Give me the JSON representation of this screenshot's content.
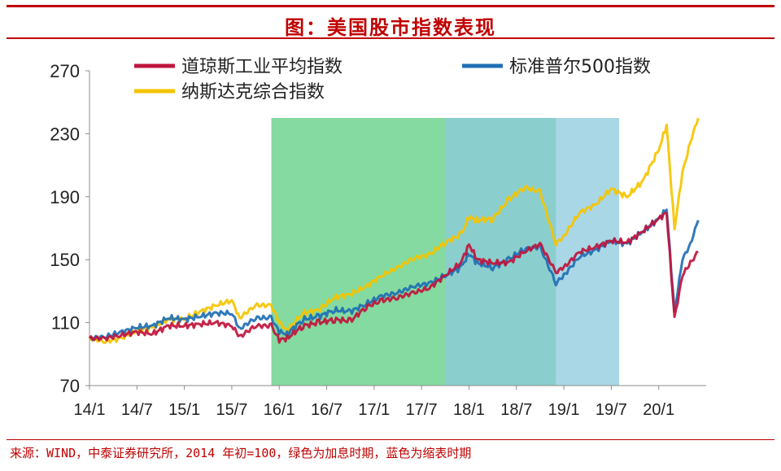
{
  "title": "图：美国股市指数表现",
  "source": "来源：WIND，中泰证券研究所，2014 年初=100，绿色为加息时期，蓝色为缩表时期",
  "chart_data": {
    "type": "line",
    "title": "图：美国股市指数表现",
    "xlabel": "",
    "ylabel": "",
    "ylim": [
      70,
      270
    ],
    "yticks": [
      70,
      110,
      150,
      190,
      230,
      270
    ],
    "xticks": [
      "14/1",
      "14/7",
      "15/1",
      "15/7",
      "16/1",
      "16/7",
      "17/1",
      "17/7",
      "18/1",
      "18/7",
      "19/1",
      "19/7",
      "20/1"
    ],
    "xlim_months": [
      0,
      78
    ],
    "grid": false,
    "legend_placement": "top",
    "shaded_periods": [
      {
        "label": "加息时期",
        "start": "15/12",
        "end": "18/12",
        "color": "#6fd38f"
      },
      {
        "label": "缩表时期",
        "start": "17/10",
        "end": "19/8",
        "color": "#8ec9de"
      }
    ],
    "series": [
      {
        "name": "道琼斯工业平均指数",
        "color": "#c0143c",
        "x": [
          "14/1",
          "14/3",
          "14/5",
          "14/7",
          "14/9",
          "14/11",
          "15/1",
          "15/3",
          "15/5",
          "15/7",
          "15/8",
          "15/10",
          "15/12",
          "16/1",
          "16/2",
          "16/4",
          "16/6",
          "16/8",
          "16/10",
          "16/12",
          "17/2",
          "17/4",
          "17/6",
          "17/8",
          "17/10",
          "17/12",
          "18/1",
          "18/2",
          "18/4",
          "18/6",
          "18/8",
          "18/10",
          "18/12",
          "19/1",
          "19/3",
          "19/5",
          "19/7",
          "19/9",
          "19/11",
          "20/1",
          "20/2",
          "20/3",
          "20/4",
          "20/5",
          "20/6"
        ],
        "y": [
          100,
          100,
          102,
          104,
          103,
          108,
          108,
          109,
          110,
          108,
          101,
          108,
          108,
          99,
          100,
          108,
          110,
          112,
          111,
          120,
          124,
          126,
          129,
          132,
          140,
          148,
          160,
          150,
          148,
          148,
          155,
          160,
          142,
          145,
          155,
          158,
          162,
          161,
          168,
          176,
          180,
          113,
          140,
          148,
          155
        ]
      },
      {
        "name": "标准普尔500指数",
        "color": "#1f6fb4",
        "x": [
          "14/1",
          "14/3",
          "14/5",
          "14/7",
          "14/9",
          "14/11",
          "15/1",
          "15/3",
          "15/5",
          "15/7",
          "15/8",
          "15/10",
          "15/12",
          "16/1",
          "16/2",
          "16/4",
          "16/6",
          "16/8",
          "16/10",
          "16/12",
          "17/2",
          "17/4",
          "17/6",
          "17/8",
          "17/10",
          "17/12",
          "18/1",
          "18/2",
          "18/4",
          "18/6",
          "18/8",
          "18/10",
          "18/12",
          "19/1",
          "19/3",
          "19/5",
          "19/7",
          "19/9",
          "19/11",
          "20/1",
          "20/2",
          "20/3",
          "20/4",
          "20/5",
          "20/6"
        ],
        "y": [
          100,
          101,
          104,
          107,
          108,
          113,
          112,
          114,
          116,
          116,
          106,
          113,
          113,
          104,
          103,
          112,
          114,
          118,
          117,
          122,
          127,
          129,
          133,
          135,
          140,
          145,
          154,
          148,
          145,
          150,
          157,
          158,
          135,
          140,
          152,
          156,
          162,
          160,
          168,
          176,
          182,
          117,
          150,
          160,
          175
        ]
      },
      {
        "name": "纳斯达克综合指数",
        "color": "#f5c400",
        "x": [
          "14/1",
          "14/3",
          "14/5",
          "14/7",
          "14/9",
          "14/11",
          "15/1",
          "15/3",
          "15/5",
          "15/7",
          "15/8",
          "15/10",
          "15/12",
          "16/1",
          "16/2",
          "16/4",
          "16/6",
          "16/8",
          "16/10",
          "16/12",
          "17/2",
          "17/4",
          "17/6",
          "17/8",
          "17/10",
          "17/12",
          "18/1",
          "18/2",
          "18/4",
          "18/6",
          "18/8",
          "18/10",
          "18/12",
          "19/1",
          "19/3",
          "19/5",
          "19/7",
          "19/9",
          "19/11",
          "20/1",
          "20/2",
          "20/3",
          "20/4",
          "20/5",
          "20/6"
        ],
        "y": [
          100,
          98,
          100,
          105,
          107,
          112,
          112,
          117,
          121,
          124,
          113,
          121,
          121,
          110,
          105,
          116,
          118,
          126,
          128,
          133,
          140,
          145,
          151,
          153,
          161,
          166,
          177,
          175,
          176,
          188,
          196,
          193,
          160,
          165,
          180,
          185,
          195,
          190,
          200,
          220,
          235,
          170,
          205,
          225,
          240
        ]
      }
    ]
  }
}
